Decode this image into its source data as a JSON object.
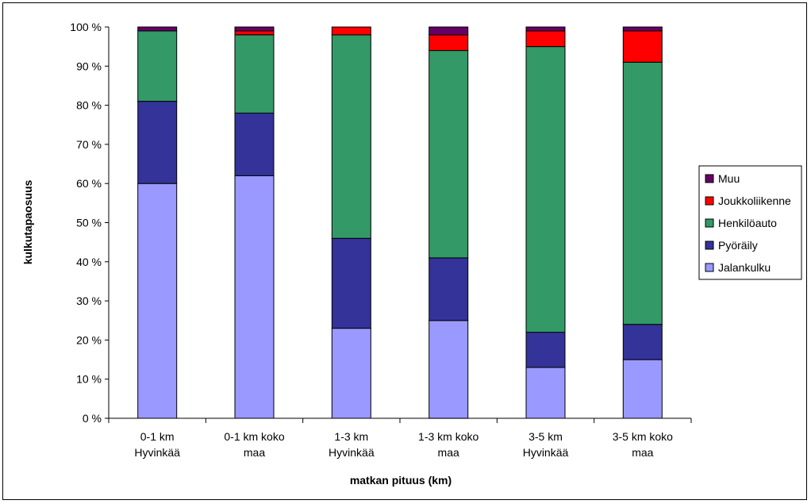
{
  "chart_data": {
    "type": "bar",
    "stacked": true,
    "title": "",
    "xlabel": "matkan pituus (km)",
    "ylabel": "kulkutapaosuus",
    "ylim": [
      0,
      100
    ],
    "yticks": [
      "0 %",
      "10 %",
      "20 %",
      "30 %",
      "40 %",
      "50 %",
      "60 %",
      "70 %",
      "80 %",
      "90 %",
      "100 %"
    ],
    "grid": false,
    "legend_position": "right",
    "categories": [
      [
        "0-1 km",
        "Hyvinkää"
      ],
      [
        "0-1 km koko",
        "maa"
      ],
      [
        "1-3 km",
        "Hyvinkää"
      ],
      [
        "1-3 km koko",
        "maa"
      ],
      [
        "3-5 km",
        "Hyvinkää"
      ],
      [
        "3-5 km koko",
        "maa"
      ]
    ],
    "series": [
      {
        "name": "Jalankulku",
        "color": "#9999ff",
        "values": [
          60,
          62,
          23,
          25,
          13,
          15
        ]
      },
      {
        "name": "Pyöräily",
        "color": "#333399",
        "values": [
          21,
          16,
          23,
          16,
          9,
          9
        ]
      },
      {
        "name": "Henkilöauto",
        "color": "#339966",
        "values": [
          18,
          20,
          52,
          53,
          73,
          67
        ]
      },
      {
        "name": "Joukkoliikenne",
        "color": "#ff0000",
        "values": [
          0,
          1,
          2,
          4,
          4,
          8
        ]
      },
      {
        "name": "Muu",
        "color": "#660066",
        "values": [
          1,
          1,
          0,
          2,
          1,
          1
        ]
      }
    ]
  }
}
